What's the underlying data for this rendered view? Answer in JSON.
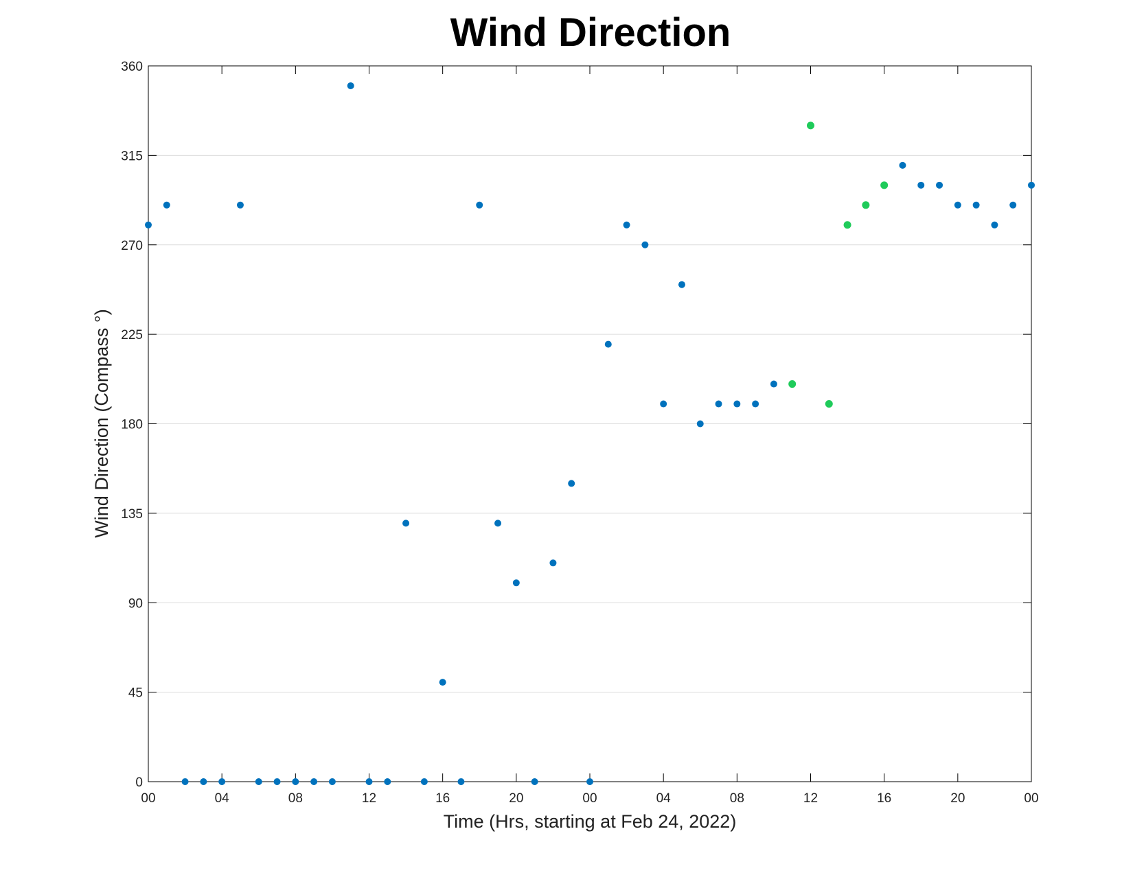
{
  "chart_data": {
    "type": "scatter",
    "title": "Wind Direction",
    "xlabel": "Time (Hrs, starting at Feb 24, 2022)",
    "ylabel": "Wind Direction (Compass °)",
    "xlim": [
      "Feb 24, 2022 00:00",
      "Feb 26, 2022 00:00"
    ],
    "ylim": [
      0,
      360
    ],
    "x_tick_labels": [
      "00",
      "04",
      "08",
      "12",
      "16",
      "20",
      "00",
      "04",
      "08",
      "12",
      "16",
      "20",
      "00"
    ],
    "y_ticks": [
      0,
      45,
      90,
      135,
      180,
      225,
      270,
      315,
      360
    ],
    "grid": "horizontal",
    "colors": {
      "default": "#0072BD",
      "highlight": "#1FCB5A",
      "axis": "#000000",
      "grid": "#DCDCDC"
    },
    "points": [
      {
        "x": "Feb 24, 2022 00:00",
        "y": 280,
        "highlight": false
      },
      {
        "x": "Feb 24, 2022 01:00",
        "y": 290,
        "highlight": false
      },
      {
        "x": "Feb 24, 2022 02:00",
        "y": 0,
        "highlight": false
      },
      {
        "x": "Feb 24, 2022 03:00",
        "y": 0,
        "highlight": false
      },
      {
        "x": "Feb 24, 2022 04:00",
        "y": 0,
        "highlight": false
      },
      {
        "x": "Feb 24, 2022 05:00",
        "y": 290,
        "highlight": false
      },
      {
        "x": "Feb 24, 2022 06:00",
        "y": 0,
        "highlight": false
      },
      {
        "x": "Feb 24, 2022 07:00",
        "y": 0,
        "highlight": false
      },
      {
        "x": "Feb 24, 2022 08:00",
        "y": 0,
        "highlight": false
      },
      {
        "x": "Feb 24, 2022 09:00",
        "y": 0,
        "highlight": false
      },
      {
        "x": "Feb 24, 2022 10:00",
        "y": 0,
        "highlight": false
      },
      {
        "x": "Feb 24, 2022 11:00",
        "y": 350,
        "highlight": false
      },
      {
        "x": "Feb 24, 2022 12:00",
        "y": 0,
        "highlight": false
      },
      {
        "x": "Feb 24, 2022 13:00",
        "y": 0,
        "highlight": false
      },
      {
        "x": "Feb 24, 2022 14:00",
        "y": 130,
        "highlight": false
      },
      {
        "x": "Feb 24, 2022 15:00",
        "y": 0,
        "highlight": false
      },
      {
        "x": "Feb 24, 2022 16:00",
        "y": 50,
        "highlight": false
      },
      {
        "x": "Feb 24, 2022 17:00",
        "y": 0,
        "highlight": false
      },
      {
        "x": "Feb 24, 2022 18:00",
        "y": 290,
        "highlight": false
      },
      {
        "x": "Feb 24, 2022 19:00",
        "y": 130,
        "highlight": false
      },
      {
        "x": "Feb 24, 2022 20:00",
        "y": 100,
        "highlight": false
      },
      {
        "x": "Feb 24, 2022 21:00",
        "y": 0,
        "highlight": false
      },
      {
        "x": "Feb 24, 2022 22:00",
        "y": 110,
        "highlight": false
      },
      {
        "x": "Feb 24, 2022 23:00",
        "y": 150,
        "highlight": false
      },
      {
        "x": "Feb 25, 2022 00:00",
        "y": 0,
        "highlight": false
      },
      {
        "x": "Feb 25, 2022 01:00",
        "y": 220,
        "highlight": false
      },
      {
        "x": "Feb 25, 2022 02:00",
        "y": 280,
        "highlight": false
      },
      {
        "x": "Feb 25, 2022 03:00",
        "y": 270,
        "highlight": false
      },
      {
        "x": "Feb 25, 2022 04:00",
        "y": 190,
        "highlight": false
      },
      {
        "x": "Feb 25, 2022 05:00",
        "y": 250,
        "highlight": false
      },
      {
        "x": "Feb 25, 2022 06:00",
        "y": 180,
        "highlight": false
      },
      {
        "x": "Feb 25, 2022 07:00",
        "y": 190,
        "highlight": false
      },
      {
        "x": "Feb 25, 2022 08:00",
        "y": 190,
        "highlight": false
      },
      {
        "x": "Feb 25, 2022 09:00",
        "y": 190,
        "highlight": false
      },
      {
        "x": "Feb 25, 2022 10:00",
        "y": 200,
        "highlight": false
      },
      {
        "x": "Feb 25, 2022 11:00",
        "y": 200,
        "highlight": true
      },
      {
        "x": "Feb 25, 2022 12:00",
        "y": 330,
        "highlight": true
      },
      {
        "x": "Feb 25, 2022 13:00",
        "y": 190,
        "highlight": true
      },
      {
        "x": "Feb 25, 2022 14:00",
        "y": 280,
        "highlight": true
      },
      {
        "x": "Feb 25, 2022 15:00",
        "y": 290,
        "highlight": true
      },
      {
        "x": "Feb 25, 2022 16:00",
        "y": 300,
        "highlight": true
      },
      {
        "x": "Feb 25, 2022 17:00",
        "y": 310,
        "highlight": false
      },
      {
        "x": "Feb 25, 2022 18:00",
        "y": 300,
        "highlight": false
      },
      {
        "x": "Feb 25, 2022 19:00",
        "y": 300,
        "highlight": false
      },
      {
        "x": "Feb 25, 2022 20:00",
        "y": 290,
        "highlight": false
      },
      {
        "x": "Feb 25, 2022 21:00",
        "y": 290,
        "highlight": false
      },
      {
        "x": "Feb 25, 2022 22:00",
        "y": 280,
        "highlight": false
      },
      {
        "x": "Feb 25, 2022 23:00",
        "y": 290,
        "highlight": false
      },
      {
        "x": "Feb 26, 2022 00:00",
        "y": 300,
        "highlight": false
      }
    ]
  }
}
